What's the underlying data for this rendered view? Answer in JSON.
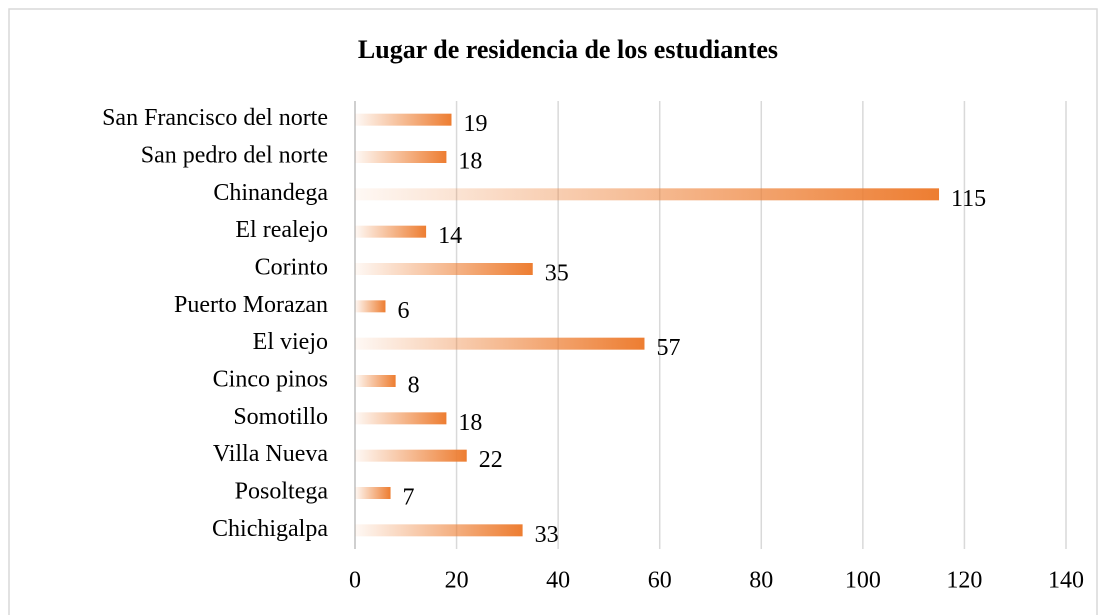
{
  "chart_data": {
    "type": "bar",
    "orientation": "horizontal",
    "title": "Lugar de residencia de los estudiantes",
    "categories": [
      "San Francisco del norte",
      "San pedro del norte",
      "Chinandega",
      "El realejo",
      "Corinto",
      "Puerto Morazan",
      "El viejo",
      "Cinco pinos",
      "Somotillo",
      "Villa Nueva",
      "Posoltega",
      "Chichigalpa"
    ],
    "values": [
      19,
      18,
      115,
      14,
      35,
      6,
      57,
      8,
      18,
      22,
      7,
      33
    ],
    "color": "#ed7d31",
    "xlim": [
      0,
      140
    ],
    "xticks": [
      0,
      20,
      40,
      60,
      80,
      100,
      120,
      140
    ],
    "grid": true
  }
}
